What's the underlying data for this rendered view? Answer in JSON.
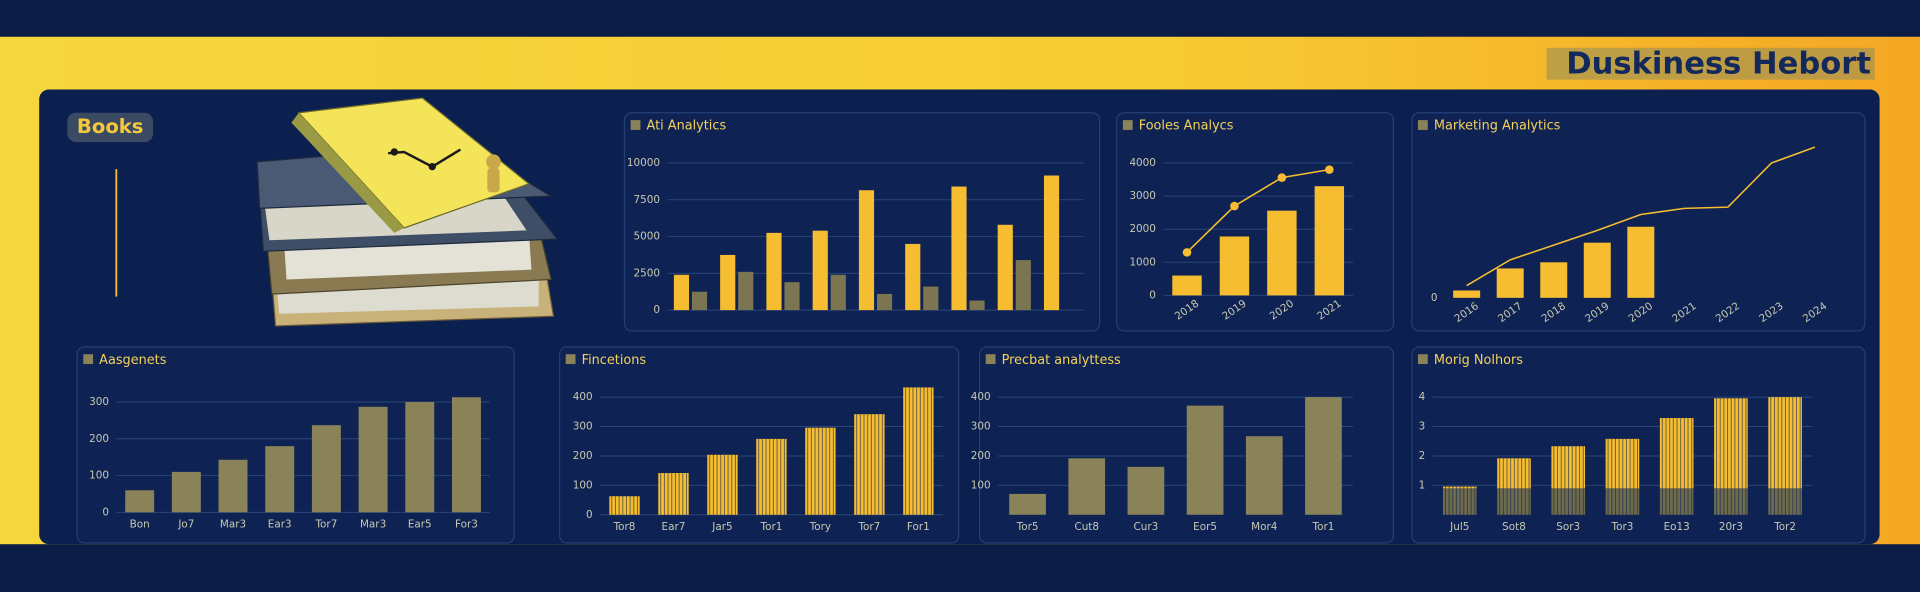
{
  "header": {
    "title": "Duskiness Hebort"
  },
  "sidebar": {
    "label": "Books"
  },
  "chart_data": [
    {
      "type": "bar",
      "title": "Ati Analytics",
      "ylim": [
        0,
        10000
      ],
      "yticks": [
        0,
        2500,
        5000,
        7500,
        10000
      ],
      "grid": true,
      "series": [
        {
          "type": "bar",
          "color": "#f5bd2f",
          "values": [
            2400,
            3750,
            5250,
            5400,
            8150,
            4500,
            8400,
            5800,
            9150
          ]
        },
        {
          "type": "bar",
          "color": "#7b7651",
          "values": [
            1250,
            2600,
            1900,
            2400,
            1100,
            1600,
            650,
            3400,
            0
          ]
        }
      ]
    },
    {
      "type": "combo",
      "title": "Fooles Analycs",
      "categories": [
        "2018",
        "2019",
        "2020",
        "2021"
      ],
      "ylim": [
        0,
        4000
      ],
      "yticks": [
        0,
        1000,
        2000,
        3000,
        4000
      ],
      "grid": true,
      "series": [
        {
          "type": "bar",
          "color": "#f5bd2f",
          "values": [
            600,
            1780,
            2560,
            3300
          ]
        },
        {
          "type": "line",
          "color": "#f5bd2f",
          "markers": true,
          "values": [
            1300,
            2700,
            3560,
            3800
          ]
        }
      ]
    },
    {
      "type": "combo",
      "title": "Marketing Analytics",
      "categories": [
        "2016",
        "2017",
        "2018",
        "2019",
        "2020",
        "2021",
        "2022",
        "2023",
        "2024"
      ],
      "ylim": [
        0,
        130
      ],
      "yticks": [
        0
      ],
      "grid": false,
      "series": [
        {
          "type": "bar",
          "color": "#f5bd2f",
          "values": [
            6,
            24,
            29,
            45,
            58,
            null,
            null,
            null,
            null
          ]
        },
        {
          "type": "line",
          "color": "#f5bd2f",
          "markers": false,
          "values": [
            10,
            31,
            43,
            55,
            68,
            73,
            74,
            110,
            123
          ]
        }
      ]
    },
    {
      "type": "bar",
      "title": "Aasgenets",
      "categories": [
        "Bon",
        "Jo7",
        "Mar3",
        "Ear3",
        "Tor7",
        "Mar3",
        "Ear5",
        "For3"
      ],
      "ylim": [
        0,
        320
      ],
      "yticks": [
        0,
        100,
        200,
        300
      ],
      "grid": true,
      "series": [
        {
          "type": "bar",
          "color": "#8a8258",
          "values": [
            60,
            110,
            143,
            180,
            237,
            287,
            300,
            313
          ]
        }
      ]
    },
    {
      "type": "bar",
      "title": "Fincetions",
      "pattern": "stripes",
      "categories": [
        "Tor8",
        "Ear7",
        "Jar5",
        "Tor1",
        "Tory",
        "Tor7",
        "For1"
      ],
      "ylim": [
        0,
        440
      ],
      "yticks": [
        0,
        100,
        200,
        300,
        400
      ],
      "grid": true,
      "series": [
        {
          "type": "bar",
          "color": "#f5bd2f",
          "values": [
            63,
            142,
            204,
            258,
            296,
            342,
            433
          ]
        }
      ]
    },
    {
      "type": "bar",
      "title": "Precbat analyttess",
      "categories": [
        "Tor5",
        "Cut8",
        "Cur3",
        "Eor5",
        "Mor4",
        "Tor1"
      ],
      "ylim": [
        0,
        440
      ],
      "yticks": [
        100,
        200,
        300,
        400
      ],
      "grid": true,
      "series": [
        {
          "type": "bar",
          "color": "#8a8258",
          "values": [
            71,
            192,
            163,
            371,
            267,
            400
          ]
        }
      ]
    },
    {
      "type": "stacked_bar",
      "title": "Morig Nolhors",
      "pattern": "stripes",
      "categories": [
        "Jul5",
        "Sot8",
        "Sor3",
        "Tor3",
        "Eo13",
        "20r3",
        "Tor2"
      ],
      "ylim": [
        0,
        5
      ],
      "yticks": [
        1,
        2,
        3,
        4
      ],
      "grid": true,
      "series": [
        {
          "type": "bar",
          "color": "#6e6a4c",
          "values": [
            0.9,
            0.9,
            0.9,
            0.9,
            0.9,
            0.9,
            0.9
          ]
        },
        {
          "type": "bar",
          "color": "#f5bd2f",
          "values": [
            0.06,
            1.02,
            1.43,
            1.68,
            2.39,
            3.06,
            3.1
          ]
        }
      ]
    }
  ]
}
